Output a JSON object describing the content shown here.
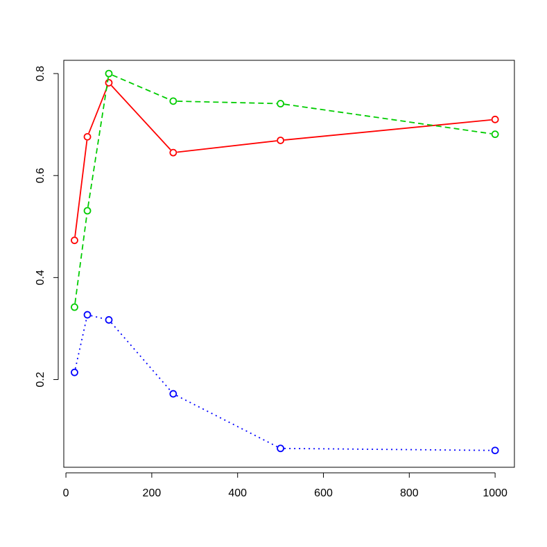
{
  "chart_data": {
    "type": "line",
    "title": "",
    "xlabel": "",
    "ylabel": "",
    "xlim": [
      -5,
      1045
    ],
    "ylim": [
      0.028,
      0.826
    ],
    "x_ticks": [
      0,
      200,
      400,
      600,
      800,
      1000
    ],
    "x_tick_labels": [
      "0",
      "200",
      "400",
      "600",
      "800",
      "1000"
    ],
    "y_ticks": [
      0.2,
      0.4,
      0.6,
      0.8
    ],
    "y_tick_labels": [
      "0.2",
      "0.4",
      "0.6",
      "0.8"
    ],
    "grid": false,
    "legend": "none",
    "x": [
      20,
      50,
      100,
      250,
      500,
      1000
    ],
    "series": [
      {
        "color": "#ff0000",
        "line_style": "solid",
        "marker": "open-circle",
        "values": [
          0.473,
          0.676,
          0.782,
          0.645,
          0.669,
          0.71
        ]
      },
      {
        "color": "#00cc00",
        "line_style": "dashed",
        "marker": "open-circle",
        "values": [
          0.342,
          0.531,
          0.8,
          0.746,
          0.741,
          0.681
        ]
      },
      {
        "color": "#0000ff",
        "line_style": "dotted",
        "marker": "open-circle",
        "values": [
          0.214,
          0.327,
          0.317,
          0.172,
          0.065,
          0.061
        ]
      }
    ]
  }
}
